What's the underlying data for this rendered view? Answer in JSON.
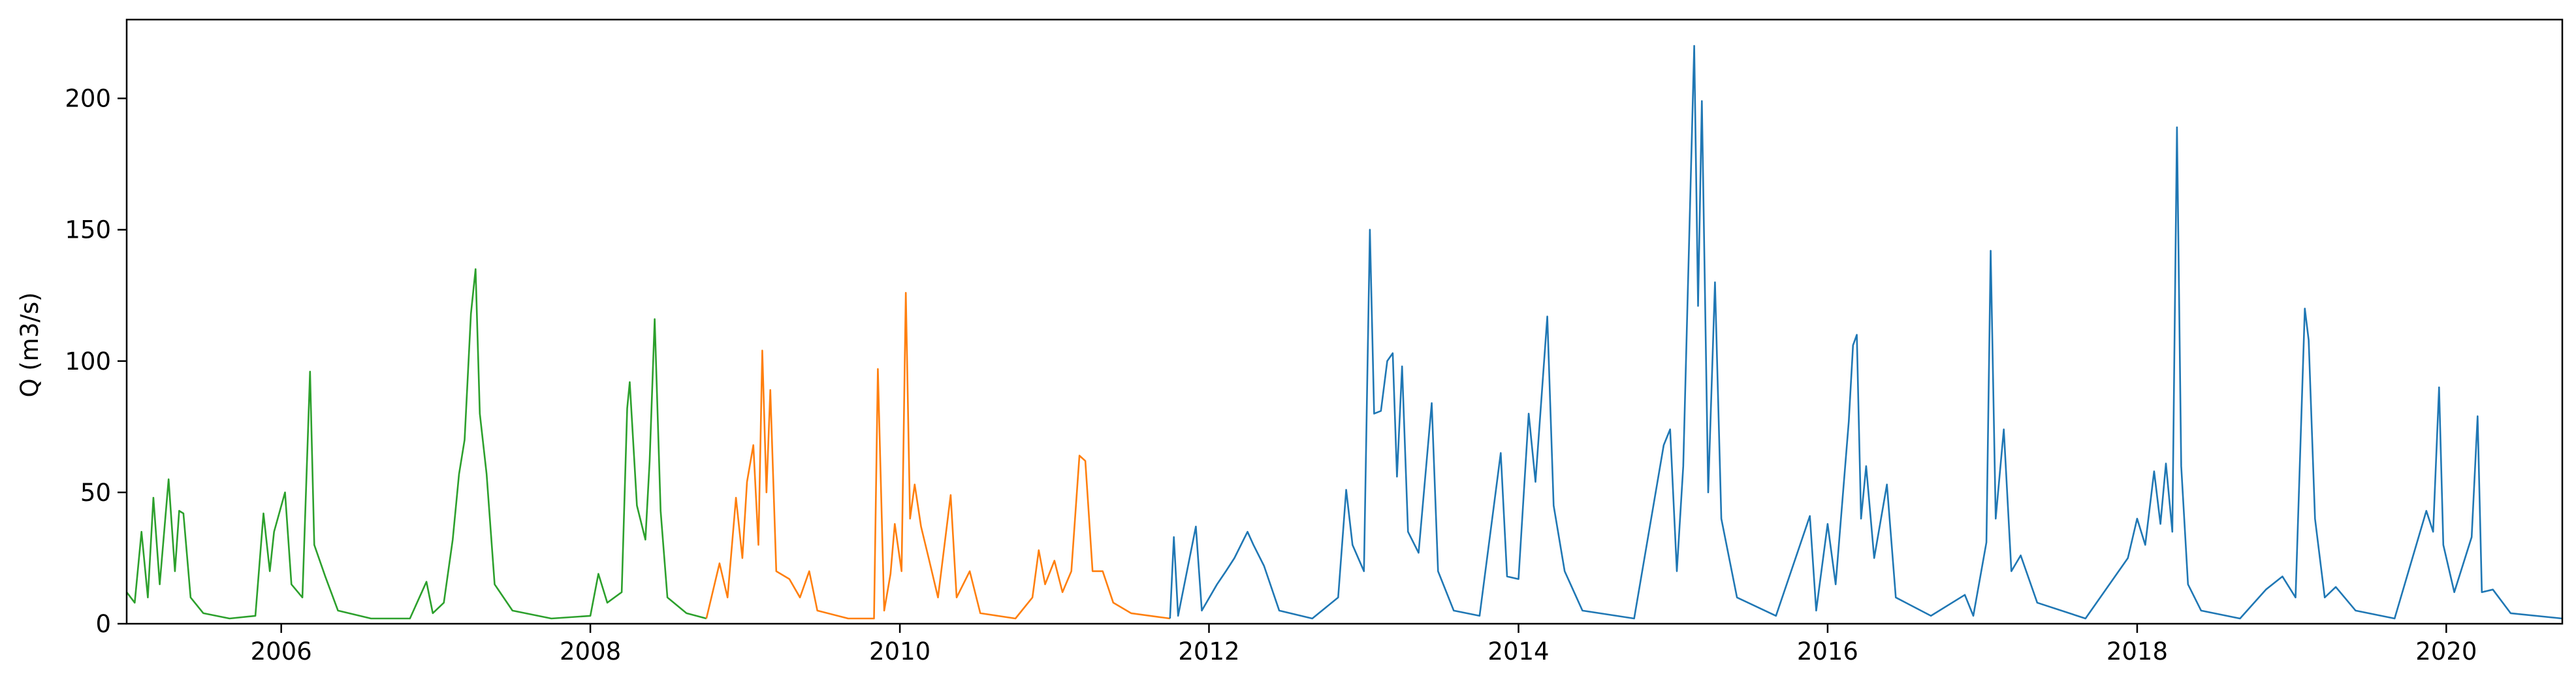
{
  "chart_data": {
    "type": "line",
    "title": "",
    "xlabel": "",
    "ylabel": "Q (m3/s)",
    "xlim": [
      "2005-01-01",
      "2020-10-01"
    ],
    "ylim": [
      0,
      230
    ],
    "x_ticks": [
      "2006",
      "2008",
      "2010",
      "2012",
      "2014",
      "2016",
      "2018",
      "2020"
    ],
    "y_ticks": [
      0,
      50,
      100,
      150,
      200
    ],
    "grid": false,
    "legend": "none",
    "colors": {
      "green_series": "#2ca02c",
      "orange_series": "#ff7f0e",
      "blue_series": "#1f77b4"
    },
    "series": [
      {
        "color": "#2ca02c",
        "points": [
          [
            "2005-01-01",
            12
          ],
          [
            "2005-01-20",
            8
          ],
          [
            "2005-02-05",
            35
          ],
          [
            "2005-02-20",
            10
          ],
          [
            "2005-03-05",
            48
          ],
          [
            "2005-03-20",
            15
          ],
          [
            "2005-04-10",
            55
          ],
          [
            "2005-04-25",
            20
          ],
          [
            "2005-05-05",
            43
          ],
          [
            "2005-05-15",
            42
          ],
          [
            "2005-06-01",
            10
          ],
          [
            "2005-07-01",
            4
          ],
          [
            "2005-09-01",
            2
          ],
          [
            "2005-11-01",
            3
          ],
          [
            "2005-11-20",
            42
          ],
          [
            "2005-12-05",
            20
          ],
          [
            "2005-12-15",
            35
          ],
          [
            "2006-01-10",
            50
          ],
          [
            "2006-01-25",
            15
          ],
          [
            "2006-02-20",
            10
          ],
          [
            "2006-03-10",
            96
          ],
          [
            "2006-03-20",
            30
          ],
          [
            "2006-04-15",
            18
          ],
          [
            "2006-05-15",
            5
          ],
          [
            "2006-08-01",
            2
          ],
          [
            "2006-11-01",
            2
          ],
          [
            "2006-12-10",
            16
          ],
          [
            "2006-12-25",
            4
          ],
          [
            "2007-01-20",
            8
          ],
          [
            "2007-02-10",
            32
          ],
          [
            "2007-02-25",
            57
          ],
          [
            "2007-03-10",
            70
          ],
          [
            "2007-03-25",
            118
          ],
          [
            "2007-04-05",
            135
          ],
          [
            "2007-04-15",
            80
          ],
          [
            "2007-05-01",
            57
          ],
          [
            "2007-05-20",
            15
          ],
          [
            "2007-07-01",
            5
          ],
          [
            "2007-10-01",
            2
          ],
          [
            "2008-01-01",
            3
          ],
          [
            "2008-01-20",
            19
          ],
          [
            "2008-02-10",
            8
          ],
          [
            "2008-03-15",
            12
          ],
          [
            "2008-03-28",
            82
          ],
          [
            "2008-04-03",
            92
          ],
          [
            "2008-04-20",
            45
          ],
          [
            "2008-05-10",
            32
          ],
          [
            "2008-05-20",
            62
          ],
          [
            "2008-06-01",
            116
          ],
          [
            "2008-06-15",
            43
          ],
          [
            "2008-07-01",
            10
          ],
          [
            "2008-08-15",
            4
          ],
          [
            "2008-10-01",
            2
          ]
        ]
      },
      {
        "color": "#ff7f0e",
        "points": [
          [
            "2008-10-01",
            2
          ],
          [
            "2008-11-01",
            23
          ],
          [
            "2008-11-20",
            10
          ],
          [
            "2008-12-10",
            48
          ],
          [
            "2008-12-25",
            25
          ],
          [
            "2009-01-05",
            54
          ],
          [
            "2009-01-20",
            68
          ],
          [
            "2009-02-01",
            30
          ],
          [
            "2009-02-10",
            104
          ],
          [
            "2009-02-20",
            50
          ],
          [
            "2009-03-01",
            89
          ],
          [
            "2009-03-15",
            20
          ],
          [
            "2009-04-15",
            17
          ],
          [
            "2009-05-10",
            10
          ],
          [
            "2009-06-01",
            20
          ],
          [
            "2009-06-20",
            5
          ],
          [
            "2009-09-01",
            2
          ],
          [
            "2009-11-01",
            2
          ],
          [
            "2009-11-10",
            97
          ],
          [
            "2009-11-25",
            5
          ],
          [
            "2009-12-10",
            19
          ],
          [
            "2009-12-20",
            38
          ],
          [
            "2010-01-05",
            20
          ],
          [
            "2010-01-15",
            126
          ],
          [
            "2010-01-25",
            40
          ],
          [
            "2010-02-05",
            53
          ],
          [
            "2010-02-20",
            37
          ],
          [
            "2010-03-10",
            25
          ],
          [
            "2010-04-01",
            10
          ],
          [
            "2010-05-01",
            49
          ],
          [
            "2010-05-15",
            10
          ],
          [
            "2010-06-15",
            20
          ],
          [
            "2010-07-10",
            4
          ],
          [
            "2010-10-01",
            2
          ],
          [
            "2010-11-10",
            10
          ],
          [
            "2010-11-25",
            28
          ],
          [
            "2010-12-10",
            15
          ],
          [
            "2011-01-01",
            24
          ],
          [
            "2011-01-20",
            12
          ],
          [
            "2011-02-10",
            20
          ],
          [
            "2011-03-01",
            64
          ],
          [
            "2011-03-15",
            62
          ],
          [
            "2011-04-01",
            20
          ],
          [
            "2011-04-25",
            20
          ],
          [
            "2011-05-20",
            8
          ],
          [
            "2011-07-01",
            4
          ],
          [
            "2011-10-01",
            2
          ]
        ]
      },
      {
        "color": "#1f77b4",
        "points": [
          [
            "2011-10-01",
            2
          ],
          [
            "2011-10-10",
            33
          ],
          [
            "2011-10-20",
            3
          ],
          [
            "2011-12-01",
            37
          ],
          [
            "2011-12-15",
            5
          ],
          [
            "2012-01-20",
            15
          ],
          [
            "2012-02-10",
            20
          ],
          [
            "2012-03-01",
            25
          ],
          [
            "2012-04-01",
            35
          ],
          [
            "2012-04-15",
            30
          ],
          [
            "2012-05-10",
            22
          ],
          [
            "2012-06-15",
            5
          ],
          [
            "2012-09-01",
            2
          ],
          [
            "2012-11-01",
            10
          ],
          [
            "2012-11-20",
            51
          ],
          [
            "2012-12-05",
            30
          ],
          [
            "2013-01-01",
            20
          ],
          [
            "2013-01-15",
            150
          ],
          [
            "2013-01-25",
            80
          ],
          [
            "2013-02-10",
            81
          ],
          [
            "2013-02-25",
            100
          ],
          [
            "2013-03-10",
            103
          ],
          [
            "2013-03-20",
            56
          ],
          [
            "2013-04-01",
            98
          ],
          [
            "2013-04-15",
            35
          ],
          [
            "2013-05-10",
            27
          ],
          [
            "2013-06-10",
            84
          ],
          [
            "2013-06-25",
            20
          ],
          [
            "2013-08-01",
            5
          ],
          [
            "2013-10-01",
            3
          ],
          [
            "2013-11-20",
            65
          ],
          [
            "2013-12-05",
            18
          ],
          [
            "2014-01-01",
            17
          ],
          [
            "2014-01-25",
            80
          ],
          [
            "2014-02-10",
            54
          ],
          [
            "2014-03-10",
            117
          ],
          [
            "2014-03-25",
            45
          ],
          [
            "2014-04-20",
            20
          ],
          [
            "2014-06-01",
            5
          ],
          [
            "2014-10-01",
            2
          ],
          [
            "2014-12-10",
            68
          ],
          [
            "2014-12-25",
            74
          ],
          [
            "2015-01-10",
            20
          ],
          [
            "2015-01-25",
            60
          ],
          [
            "2015-02-20",
            220
          ],
          [
            "2015-03-01",
            121
          ],
          [
            "2015-03-10",
            199
          ],
          [
            "2015-03-25",
            50
          ],
          [
            "2015-04-10",
            130
          ],
          [
            "2015-04-25",
            40
          ],
          [
            "2015-06-01",
            10
          ],
          [
            "2015-09-01",
            3
          ],
          [
            "2015-11-20",
            41
          ],
          [
            "2015-12-05",
            5
          ],
          [
            "2016-01-01",
            38
          ],
          [
            "2016-01-20",
            15
          ],
          [
            "2016-02-20",
            77
          ],
          [
            "2016-03-01",
            106
          ],
          [
            "2016-03-10",
            110
          ],
          [
            "2016-03-20",
            40
          ],
          [
            "2016-04-01",
            60
          ],
          [
            "2016-04-20",
            25
          ],
          [
            "2016-05-20",
            53
          ],
          [
            "2016-06-10",
            10
          ],
          [
            "2016-09-01",
            3
          ],
          [
            "2016-11-20",
            11
          ],
          [
            "2016-12-10",
            3
          ],
          [
            "2017-01-10",
            31
          ],
          [
            "2017-01-20",
            142
          ],
          [
            "2017-02-01",
            40
          ],
          [
            "2017-02-20",
            74
          ],
          [
            "2017-03-10",
            20
          ],
          [
            "2017-04-01",
            26
          ],
          [
            "2017-05-10",
            8
          ],
          [
            "2017-09-01",
            2
          ],
          [
            "2017-12-10",
            25
          ],
          [
            "2018-01-01",
            40
          ],
          [
            "2018-01-20",
            30
          ],
          [
            "2018-02-10",
            58
          ],
          [
            "2018-02-25",
            38
          ],
          [
            "2018-03-10",
            61
          ],
          [
            "2018-03-25",
            35
          ],
          [
            "2018-04-05",
            189
          ],
          [
            "2018-04-15",
            60
          ],
          [
            "2018-05-01",
            15
          ],
          [
            "2018-06-01",
            5
          ],
          [
            "2018-09-01",
            2
          ],
          [
            "2018-11-01",
            13
          ],
          [
            "2018-12-10",
            18
          ],
          [
            "2019-01-10",
            10
          ],
          [
            "2019-02-01",
            120
          ],
          [
            "2019-02-10",
            108
          ],
          [
            "2019-02-25",
            40
          ],
          [
            "2019-03-20",
            10
          ],
          [
            "2019-04-15",
            14
          ],
          [
            "2019-06-01",
            5
          ],
          [
            "2019-09-01",
            2
          ],
          [
            "2019-11-15",
            43
          ],
          [
            "2019-12-01",
            35
          ],
          [
            "2019-12-15",
            90
          ],
          [
            "2019-12-25",
            30
          ],
          [
            "2020-01-20",
            12
          ],
          [
            "2020-03-01",
            33
          ],
          [
            "2020-03-15",
            79
          ],
          [
            "2020-03-25",
            12
          ],
          [
            "2020-04-20",
            13
          ],
          [
            "2020-06-01",
            4
          ],
          [
            "2020-10-01",
            2
          ]
        ]
      }
    ]
  }
}
